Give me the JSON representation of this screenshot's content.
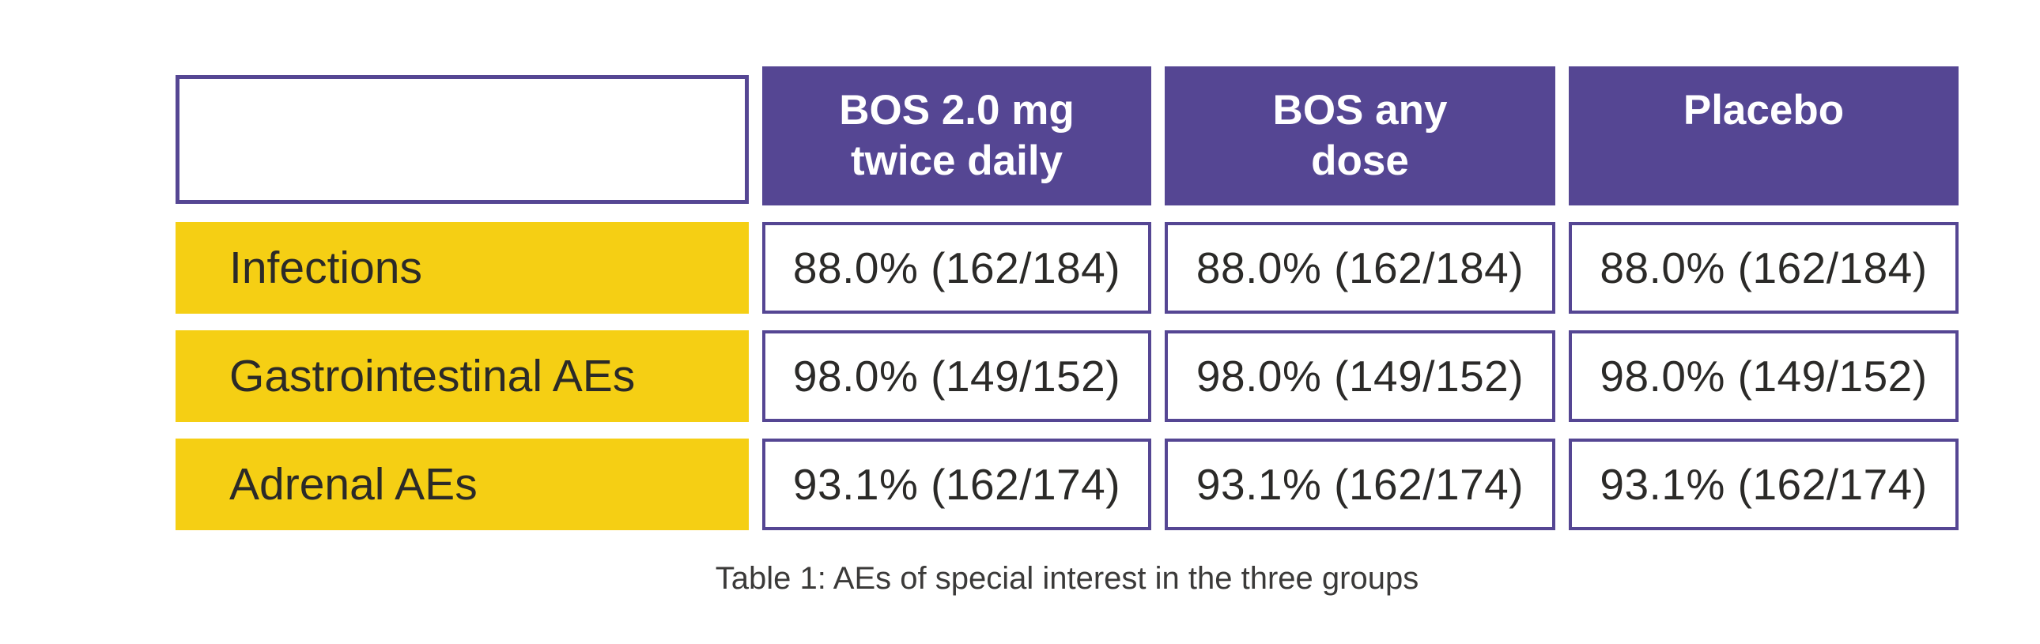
{
  "chart_data": {
    "type": "table",
    "title": "Table 1: AEs of special interest in the three groups",
    "columns": [
      {
        "line1": "BOS 2.0 mg",
        "line2": "twice daily"
      },
      {
        "line1": "BOS any",
        "line2": "dose"
      },
      {
        "line1": "Placebo",
        "line2": ""
      }
    ],
    "rows": [
      {
        "label": "Infections",
        "percent": 88.0,
        "numerator": 162,
        "denominator": 184,
        "values": [
          "88.0% (162/184)",
          "88.0% (162/184)",
          "88.0% (162/184)"
        ]
      },
      {
        "label": "Gastrointestinal AEs",
        "percent": 98.0,
        "numerator": 149,
        "denominator": 152,
        "values": [
          "98.0% (149/152)",
          "98.0% (149/152)",
          "98.0% (149/152)"
        ]
      },
      {
        "label": "Adrenal AEs",
        "percent": 93.1,
        "numerator": 162,
        "denominator": 174,
        "values": [
          "93.1% (162/174)",
          "93.1% (162/174)",
          "93.1% (162/174)"
        ]
      }
    ],
    "colors": {
      "header_purple": "#554693",
      "cell_border_purple": "#554693",
      "row_label_yellow": "#F5CF14",
      "cell_text_dark": "#2B2A28",
      "caption_gray": "#3B3A39",
      "header_text": "#FFFFFF",
      "background": "#FFFFFF"
    },
    "layout": {
      "grid": "4 columns x 4 rows with white gaps",
      "legend_position": "none",
      "caption_position": "bottom-center"
    }
  }
}
